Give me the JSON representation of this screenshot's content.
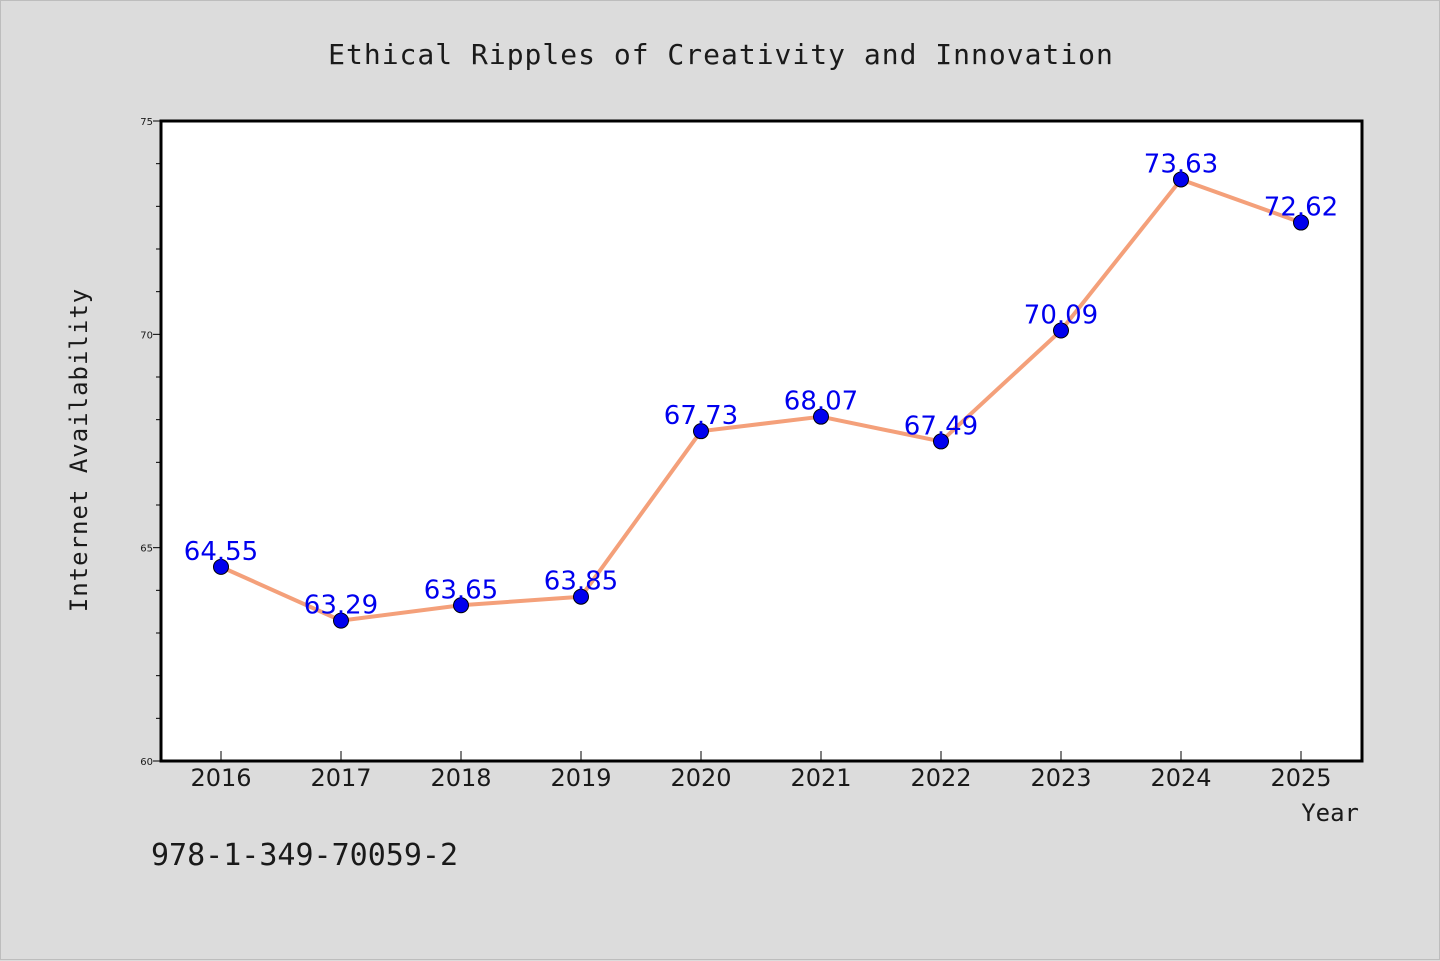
{
  "chart_data": {
    "type": "line",
    "title": "Ethical Ripples of Creativity and Innovation",
    "xlabel": "Year",
    "ylabel": "Internet Availability",
    "categories": [
      "2016",
      "2017",
      "2018",
      "2019",
      "2020",
      "2021",
      "2022",
      "2023",
      "2024",
      "2025"
    ],
    "series": [
      {
        "values": [
          64.55,
          63.29,
          63.65,
          63.85,
          67.73,
          68.07,
          67.49,
          70.09,
          73.63,
          72.62
        ]
      }
    ],
    "data_labels": [
      "64.55",
      "63.29",
      "63.65",
      "63.85",
      "67.73",
      "68.07",
      "67.49",
      "70.09",
      "73.63",
      "72.62"
    ],
    "ylim": [
      60,
      75
    ],
    "yticks": [
      "60",
      "65",
      "70",
      "75"
    ],
    "grid": false,
    "legend": "none",
    "colors": {
      "line": "#f4a07a",
      "marker": "#0000ee",
      "label": "#0000ee",
      "background": "#dcdcdc",
      "plot": "#ffffff"
    }
  },
  "annotation": {
    "isbn": "978-1-349-70059-2"
  }
}
